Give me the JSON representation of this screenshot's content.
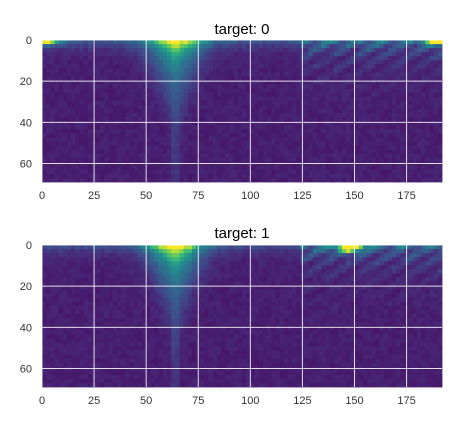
{
  "chart_data": [
    {
      "type": "heatmap",
      "title": "target: 0",
      "xlim": [
        0,
        192
      ],
      "ylim": [
        69,
        0
      ],
      "x_ticks": [
        0,
        25,
        50,
        75,
        100,
        125,
        150,
        175
      ],
      "y_ticks": [
        0,
        20,
        40,
        60
      ],
      "grid": true,
      "colormap": "viridis",
      "features": [
        {
          "kind": "column_plume",
          "center_x": 64,
          "peak": 0.75,
          "depth": 45
        },
        {
          "kind": "top_band",
          "x_range": [
            0,
            192
          ],
          "peak": 0.35
        },
        {
          "kind": "bright_spot",
          "x": 2,
          "y": 0,
          "peak": 0.85
        },
        {
          "kind": "bright_spot",
          "x": 190,
          "y": 0,
          "peak": 0.8
        },
        {
          "kind": "right_texture",
          "x_range": [
            125,
            192
          ],
          "peak": 0.4
        }
      ]
    },
    {
      "type": "heatmap",
      "title": "target: 1",
      "xlim": [
        0,
        192
      ],
      "ylim": [
        69,
        0
      ],
      "x_ticks": [
        0,
        25,
        50,
        75,
        100,
        125,
        150,
        175
      ],
      "y_ticks": [
        0,
        20,
        40,
        60
      ],
      "grid": true,
      "colormap": "viridis",
      "features": [
        {
          "kind": "column_plume",
          "center_x": 64,
          "peak": 0.8,
          "depth": 45
        },
        {
          "kind": "top_band",
          "x_range": [
            0,
            192
          ],
          "peak": 0.3
        },
        {
          "kind": "bright_spot",
          "x": 148,
          "y": 1,
          "peak": 1.0
        },
        {
          "kind": "right_texture",
          "x_range": [
            125,
            192
          ],
          "peak": 0.45
        }
      ]
    }
  ]
}
